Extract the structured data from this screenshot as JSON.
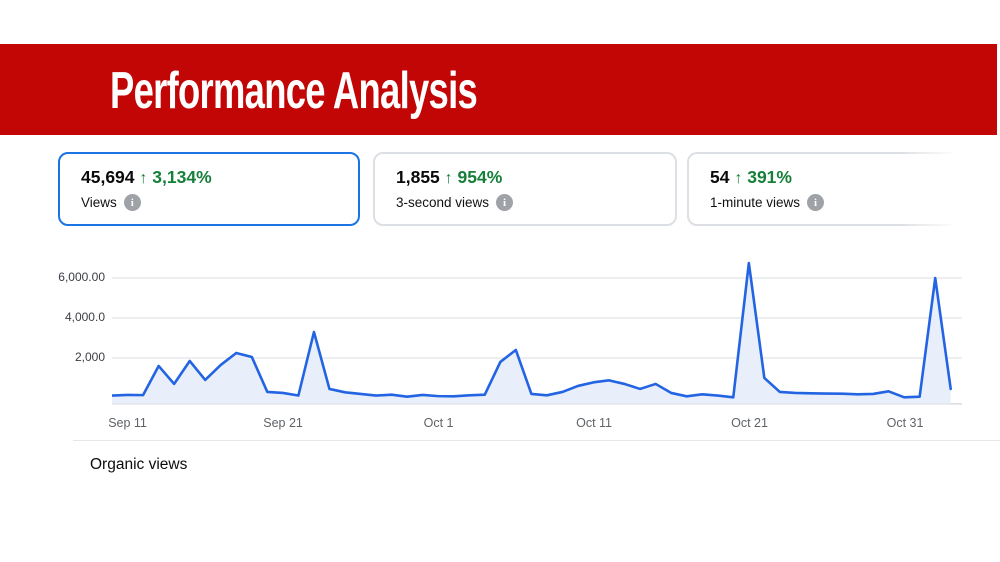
{
  "header": {
    "title": "Performance Analysis",
    "banner_color": "#c20505"
  },
  "metric_cards": [
    {
      "value": "45,694",
      "arrow": "↑",
      "delta": "3,134%",
      "label": "Views",
      "selected": true
    },
    {
      "value": "1,855",
      "arrow": "↑",
      "delta": "954%",
      "label": "3-second views",
      "selected": false
    },
    {
      "value": "54",
      "arrow": "↑",
      "delta": "391%",
      "label": "1-minute views",
      "selected": false
    }
  ],
  "chart_data": {
    "type": "area",
    "title": "",
    "series_name": "Organic views",
    "x_tick_labels": [
      "Sep 11",
      "Sep 21",
      "Oct 1",
      "Oct 11",
      "Oct 21",
      "Oct 31"
    ],
    "x_tick_day_indices": [
      1,
      11,
      21,
      31,
      41,
      51
    ],
    "y_tick_labels": [
      "6,000.00",
      "4,000.0",
      "2,000"
    ],
    "y_tick_values": [
      6000,
      4000,
      2000
    ],
    "ylim": [
      0,
      7500
    ],
    "grid": true,
    "legend_position": "bottom-left",
    "x_start_date": "Sep 10",
    "x_end_date": "Nov 3",
    "line_color": "#2364e2",
    "fill_color": "#e9effa",
    "values": [
      120,
      150,
      140,
      1600,
      700,
      1850,
      900,
      1650,
      2250,
      2050,
      300,
      250,
      120,
      3300,
      450,
      280,
      200,
      120,
      160,
      60,
      150,
      90,
      80,
      130,
      160,
      1800,
      2400,
      200,
      130,
      300,
      600,
      780,
      880,
      700,
      450,
      700,
      250,
      80,
      180,
      120,
      30,
      6750,
      1000,
      300,
      250,
      230,
      220,
      210,
      180,
      200,
      330,
      30,
      60,
      6000,
      450
    ]
  },
  "footer": {
    "legend_label": "Organic views"
  }
}
